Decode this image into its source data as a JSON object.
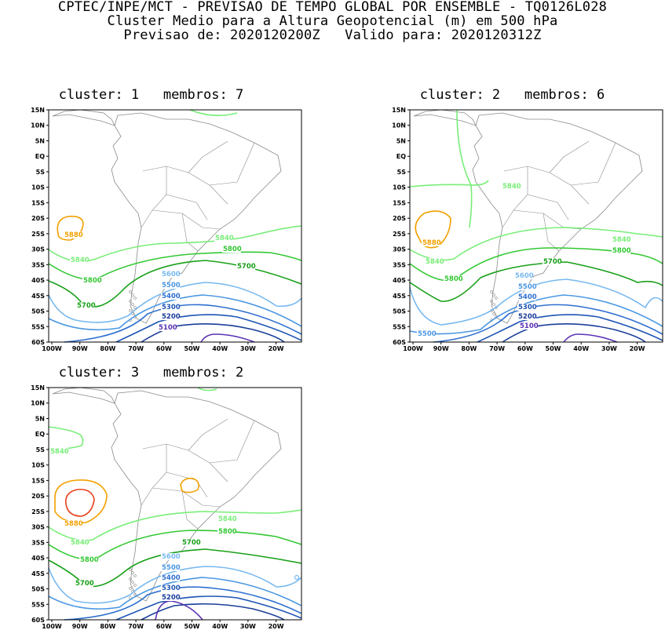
{
  "header": {
    "line1": "CPTEC/INPE/MCT - PREVISAO DE TEMPO GLOBAL POR ENSEMBLE - TQ0126L028",
    "line2": "Cluster Medio para a Altura Geopotencial (m) em 500 hPa",
    "line3": "Previsao de: 2020120200Z   Valido para: 2020120312Z"
  },
  "axes": {
    "lat_labels": [
      "15N",
      "10N",
      "5N",
      "EQ",
      "5S",
      "10S",
      "15S",
      "20S",
      "25S",
      "30S",
      "35S",
      "40S",
      "45S",
      "50S",
      "55S",
      "60S"
    ],
    "lon_labels": [
      "100W",
      "90W",
      "80W",
      "70W",
      "60W",
      "50W",
      "40W",
      "30W",
      "20W"
    ]
  },
  "panels": [
    {
      "title": "cluster: 1   membros: 7",
      "labels": [
        "5880",
        "5840",
        "5840",
        "5800",
        "5800",
        "5700",
        "5700",
        "5600",
        "5500",
        "5400",
        "5300",
        "5200",
        "5100"
      ]
    },
    {
      "title": "cluster: 2   membros: 6",
      "labels": [
        "5840",
        "5880",
        "5840",
        "5840",
        "5800",
        "5800",
        "5700",
        "5600",
        "5500",
        "5400",
        "5300",
        "5200",
        "5100",
        "5500"
      ]
    },
    {
      "title": "cluster: 3   membros: 2",
      "labels": [
        "5840",
        "5880",
        "5840",
        "5840",
        "5800",
        "5800",
        "5700",
        "5700",
        "5600",
        "5500",
        "5400",
        "5300",
        "5200"
      ]
    }
  ],
  "colors": {
    "c5880": "#f2a000",
    "c5920": "#e8401c",
    "c5840": "#78ee78",
    "c5800": "#32c832",
    "c5700": "#18a018",
    "c5600": "#78b9f0",
    "c5500": "#4a97e2",
    "c5400": "#2d6fd0",
    "c5300": "#1e55b4",
    "c5200": "#1a3e99",
    "c5100": "#5a32b4",
    "coast": "#8a8a8a"
  }
}
